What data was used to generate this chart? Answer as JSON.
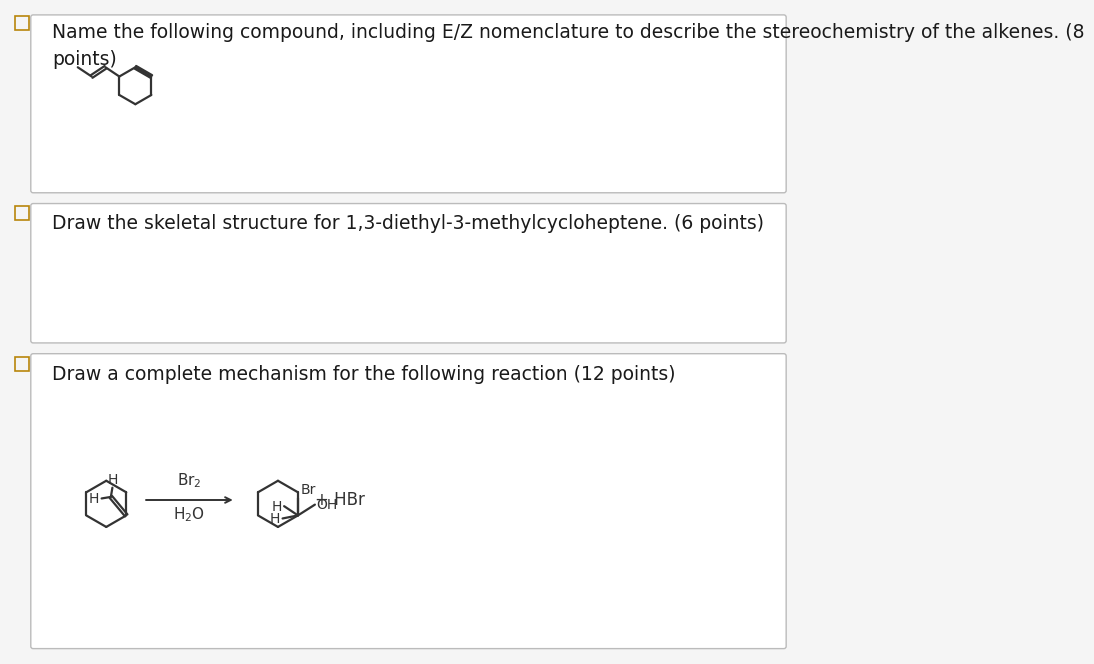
{
  "bg_color": "#f5f5f5",
  "panel_bg": "#ffffff",
  "border_color": "#bbbbbb",
  "checkbox_color": "#b8860b",
  "text_color": "#1a2e5a",
  "body_text_color": "#1a1a1a",
  "panel1_text": "Name the following compound, including E/Z nomenclature to describe the stereochemistry of the alkenes. (8\npoints)",
  "panel2_text": "Draw the skeletal structure for 1,3-diethyl-3-methylcycloheptene. (6 points)",
  "panel3_text": "Draw a complete mechanism for the following reaction (12 points)",
  "mol_color": "#333333",
  "font_size_body": 13.5,
  "lw_mol": 1.6,
  "lw_border": 1.0
}
